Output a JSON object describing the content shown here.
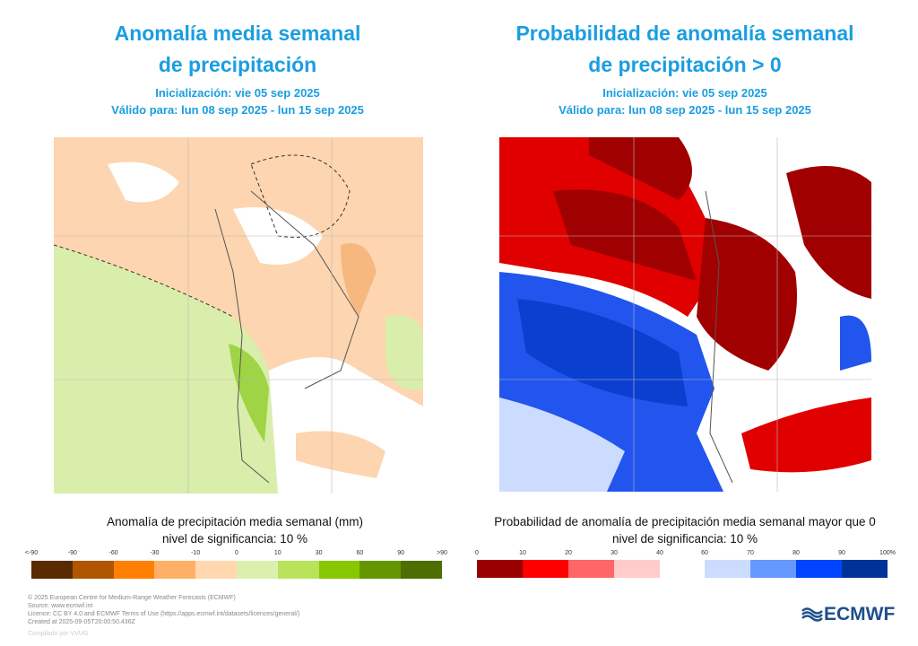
{
  "left": {
    "title_line1": "Anomalía media semanal",
    "title_line2": "de precipitación",
    "init": "Inicialización: vie 05 sep 2025",
    "valid": "Válido para: lun 08 sep 2025 - lun 15 sep 2025",
    "caption": "Anomalía de precipitación media semanal (mm)",
    "significance": "nivel de significancia: 10 %",
    "legend_labels": [
      "<-90",
      "-90",
      "-60",
      "-30",
      "-10",
      "0",
      "10",
      "30",
      "60",
      "90",
      ">90"
    ],
    "legend_colors": [
      "#5a2a00",
      "#b05600",
      "#ff8000",
      "#ffb066",
      "#ffd8b0",
      "#dcf0ad",
      "#b8e35a",
      "#88c800",
      "#649600",
      "#4d6e00"
    ]
  },
  "right": {
    "title_line1": "Probabilidad de anomalía semanal",
    "title_line2": "de precipitación > 0",
    "init": "Inicialización: vie 05 sep 2025",
    "valid": "Válido para: lun 08 sep 2025 - lun 15 sep 2025",
    "caption": "Probabilidad de anomalía de precipitación media semanal mayor que 0",
    "significance": "nivel de significancia: 10 %",
    "legend_labels_low": [
      "0",
      "10",
      "20",
      "30",
      "40"
    ],
    "legend_colors_low": [
      "#990000",
      "#ff0000",
      "#ff6666",
      "#ffcccc"
    ],
    "legend_labels_high": [
      "60",
      "70",
      "80",
      "90",
      "100%"
    ],
    "legend_colors_high": [
      "#ccdcff",
      "#6699ff",
      "#0044ff",
      "#003399"
    ]
  },
  "footer": {
    "lines": [
      "© 2025 European Centre for Medium-Range Weather Forecasts (ECMWF)",
      "Source: www.ecmwf.int",
      "Licence: CC BY 4.0 and ECMWF Terms of Use (https://apps.ecmwf.int/datasets/licences/general/)",
      "Created at 2025-09-05T20:00:50.436Z"
    ],
    "compiled": "Compilado por VVUG",
    "logo": "ECMWF"
  }
}
